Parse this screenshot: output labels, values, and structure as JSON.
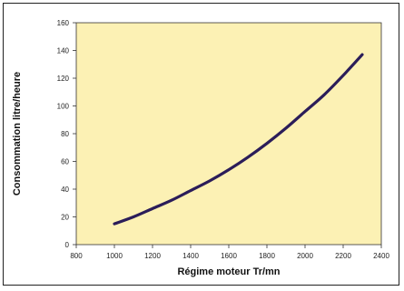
{
  "chart_data": {
    "type": "line",
    "title": "",
    "xlabel": "Régime moteur Tr/mn",
    "ylabel": "Consommation litre/heure",
    "xlim": [
      800,
      2400
    ],
    "ylim": [
      0,
      160
    ],
    "x_ticks": [
      "800",
      "1000",
      "1200",
      "1400",
      "1600",
      "1800",
      "2000",
      "2200",
      "2400"
    ],
    "y_ticks": [
      "0",
      "20",
      "40",
      "60",
      "80",
      "100",
      "120",
      "140",
      "160"
    ],
    "grid": false,
    "legend": "none",
    "colors": {
      "plot_background": "#fcf1b4",
      "line": "#2b1d59",
      "frame": "#222222"
    },
    "series": [
      {
        "x": [
          1000,
          1100,
          1200,
          1300,
          1400,
          1500,
          1600,
          1700,
          1800,
          1900,
          2000,
          2100,
          2200,
          2300
        ],
        "y": [
          15,
          20,
          26,
          32,
          39,
          46,
          54,
          63,
          73,
          84,
          96,
          108,
          122,
          137
        ]
      }
    ]
  }
}
